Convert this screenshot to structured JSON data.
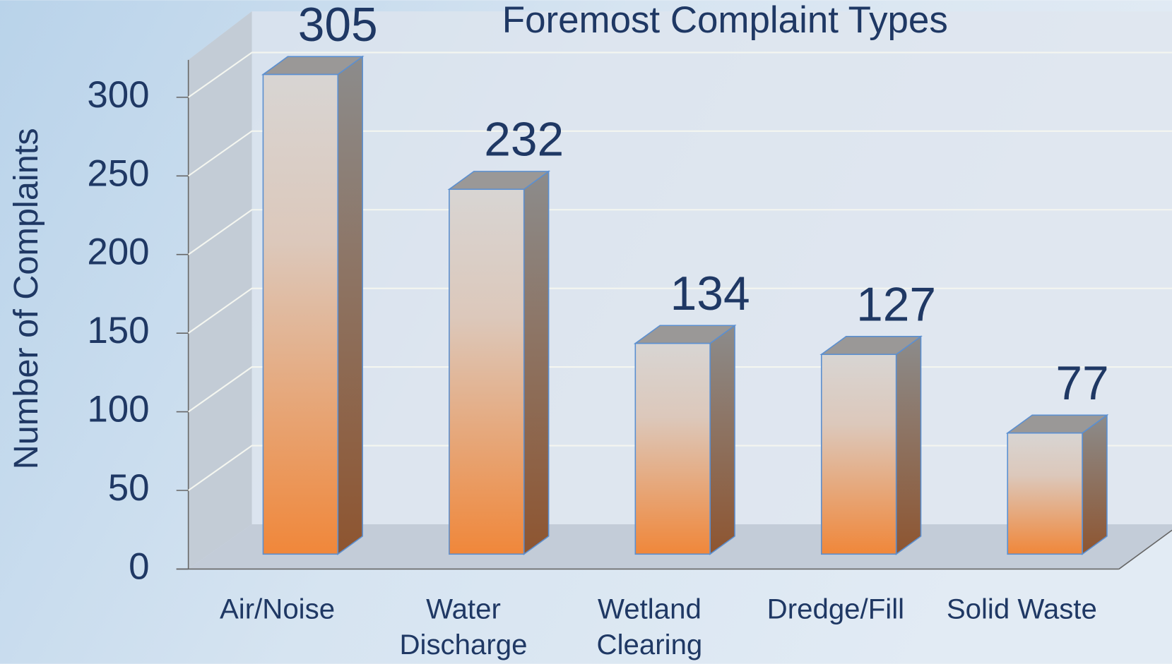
{
  "chart_data": {
    "type": "bar3d",
    "title": "Foremost Complaint Types",
    "y_label": "Number of Complaints",
    "categories": [
      "Air/Noise",
      "Water Discharge",
      "Wetland Clearing",
      "Dredge/Fill",
      "Solid Waste"
    ],
    "values": [
      305,
      232,
      134,
      127,
      77
    ],
    "ylim": [
      0,
      320
    ],
    "yticks": [
      0,
      50,
      100,
      150,
      200,
      250,
      300
    ],
    "grid": true
  }
}
